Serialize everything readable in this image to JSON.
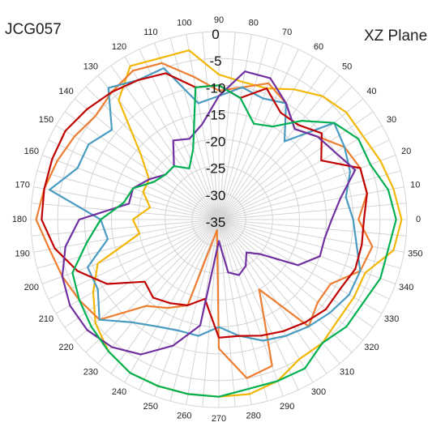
{
  "titles": {
    "left": "JCG057",
    "right": "XZ Plane"
  },
  "chart_data": {
    "type": "radar",
    "title": "XZ Plane",
    "angle_ticks": [
      "0",
      "10",
      "20",
      "30",
      "40",
      "50",
      "60",
      "70",
      "80",
      "90",
      "100",
      "110",
      "120",
      "130",
      "140",
      "150",
      "160",
      "170",
      "180",
      "190",
      "200",
      "210",
      "220",
      "230",
      "240",
      "250",
      "260",
      "270",
      "280",
      "290",
      "300",
      "310",
      "320",
      "330",
      "340",
      "350"
    ],
    "radial_ticks": [
      "0",
      "-5",
      "-10",
      "-15",
      "-20",
      "-25",
      "-30",
      "-35"
    ],
    "rlim": [
      -35,
      0
    ],
    "grid": true,
    "legend": "none",
    "angles_deg": [
      0,
      10,
      20,
      30,
      40,
      50,
      60,
      70,
      80,
      90,
      100,
      110,
      120,
      130,
      140,
      150,
      160,
      170,
      180,
      190,
      200,
      210,
      220,
      230,
      240,
      250,
      260,
      270,
      280,
      290,
      300,
      310,
      320,
      330,
      340,
      350
    ],
    "series": [
      {
        "color": "#f2b705",
        "values": [
          -1,
          -2,
          -3,
          -4,
          -4,
          -5,
          -7,
          -9,
          -9,
          -8,
          -3,
          -3,
          -2,
          -6,
          -16,
          -20,
          -20,
          -22,
          -19,
          -20,
          -11,
          -8,
          -5,
          -3,
          -2,
          -2,
          -2,
          -2,
          -2,
          -3,
          -5,
          -5,
          -6,
          -6,
          -6,
          -2
        ]
      },
      {
        "color": "#ed7d31",
        "values": [
          -9,
          -7,
          -7,
          -8,
          -11,
          -13,
          -10,
          -8,
          -10,
          -11,
          -8,
          -4,
          -3,
          -4,
          -5,
          -4,
          -3,
          -2,
          -1,
          -3,
          -4,
          -5,
          -6,
          -14,
          -16,
          -18,
          -33,
          -11,
          -5,
          -6,
          -20,
          -9,
          -11,
          -11,
          -7,
          -6
        ]
      },
      {
        "color": "#4a9bc1",
        "values": [
          -10,
          -11,
          -9,
          -8,
          -7,
          -16,
          -10,
          -11,
          -10,
          -12,
          -13,
          -5,
          -5,
          -3,
          -9,
          -7,
          -7,
          -3,
          -13,
          -14,
          -9,
          -9,
          -6,
          -10,
          -12,
          -13,
          -13,
          -15,
          -13,
          -11,
          -10,
          -9,
          -8,
          -7,
          -7,
          -9
        ]
      },
      {
        "color": "#c00000",
        "values": [
          -8,
          -7,
          -7,
          -13,
          -10,
          -12,
          -12,
          -9,
          -12,
          -10,
          -10,
          -6,
          -5,
          -4,
          -3,
          -2,
          -2,
          -2,
          -2,
          -4,
          -7,
          -11,
          -17,
          -16,
          -17,
          -18,
          -20,
          -13,
          -13,
          -12,
          -11,
          -10,
          -9,
          -9,
          -8,
          -8
        ]
      },
      {
        "color": "#7030a0",
        "values": [
          -14,
          -12,
          -8,
          -10,
          -11,
          -13,
          -10,
          -7,
          -7,
          -12,
          -17,
          -19,
          -18,
          -22,
          -22,
          -20,
          -18,
          -18,
          -9,
          -6,
          -4,
          -3,
          -3,
          -4,
          -6,
          -10,
          -15,
          -31,
          -25,
          -24,
          -25,
          -27,
          -25,
          -18,
          -15,
          -15
        ]
      },
      {
        "color": "#00b050",
        "values": [
          -2,
          -3,
          -5,
          -5,
          -7,
          -11,
          -15,
          -16,
          -12,
          -10,
          -10,
          -21,
          -24,
          -22,
          -22,
          -21,
          -18,
          -17,
          -13,
          -10,
          -6,
          -5,
          -4,
          -3,
          -2,
          -2,
          -2,
          -2,
          -3,
          -3,
          -3,
          -5,
          -4,
          -4,
          -3,
          -3
        ]
      }
    ]
  }
}
